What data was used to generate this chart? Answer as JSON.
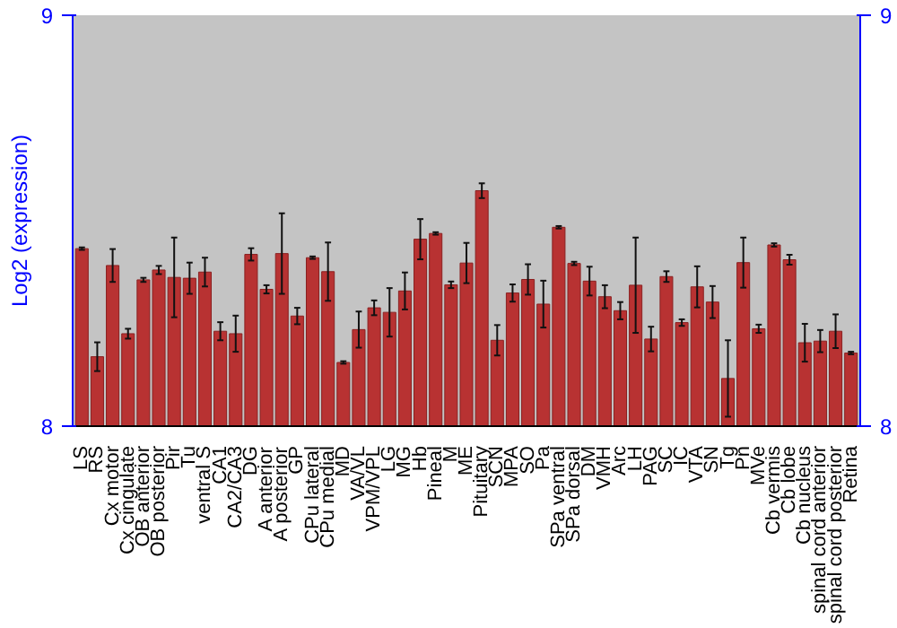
{
  "chart_data": {
    "type": "bar",
    "ylabel": "Log2 (expression)",
    "categories": [
      "LS",
      "RS",
      "Cx motor",
      "Cx cingulate",
      "OB anterior",
      "OB posterior",
      "Pir",
      "Tu",
      "ventral S",
      "CA1",
      "CA2/CA3",
      "DG",
      "A anterior",
      "A posterior",
      "GP",
      "CPu lateral",
      "CPu medial",
      "MD",
      "VA/VL",
      "VPM/VPL",
      "LG",
      "MG",
      "Hb",
      "Pineal",
      "M",
      "ME",
      "Pituitary",
      "SCN",
      "MPA",
      "SO",
      "Pa",
      "SPa ventral",
      "SPa dorsal",
      "DM",
      "VMH",
      "Arc",
      "LH",
      "PAG",
      "SC",
      "IC",
      "VTA",
      "SN",
      "Tg",
      "Pn",
      "MVe",
      "Cb vermis",
      "Cb lobe",
      "Cb nucleus",
      "spinal cord anterior",
      "spinal cord posterior",
      "Retina"
    ],
    "values": [
      8.432,
      8.169,
      8.391,
      8.225,
      8.356,
      8.38,
      8.362,
      8.36,
      8.375,
      8.231,
      8.225,
      8.418,
      8.333,
      8.42,
      8.268,
      8.41,
      8.376,
      8.155,
      8.235,
      8.288,
      8.277,
      8.329,
      8.455,
      8.469,
      8.344,
      8.397,
      8.573,
      8.209,
      8.324,
      8.357,
      8.297,
      8.484,
      8.396,
      8.353,
      8.315,
      8.281,
      8.343,
      8.212,
      8.364,
      8.252,
      8.339,
      8.302,
      8.116,
      8.398,
      8.237,
      8.441,
      8.405,
      8.203,
      8.207,
      8.231,
      8.178
    ],
    "errors": [
      0.003,
      0.035,
      0.04,
      0.012,
      0.005,
      0.01,
      0.097,
      0.038,
      0.035,
      0.022,
      0.044,
      0.015,
      0.01,
      0.098,
      0.02,
      0.003,
      0.071,
      0.003,
      0.044,
      0.018,
      0.059,
      0.045,
      0.049,
      0.003,
      0.008,
      0.049,
      0.018,
      0.037,
      0.021,
      0.037,
      0.057,
      0.003,
      0.004,
      0.035,
      0.028,
      0.021,
      0.116,
      0.03,
      0.013,
      0.008,
      0.05,
      0.039,
      0.093,
      0.061,
      0.01,
      0.004,
      0.012,
      0.046,
      0.027,
      0.041,
      0.003
    ],
    "color": "#b83232",
    "ylim": [
      8,
      9
    ],
    "yticks": [
      8,
      9
    ],
    "y2lim": [
      8,
      9
    ],
    "y2ticks": [
      8,
      9
    ],
    "grid": false
  }
}
